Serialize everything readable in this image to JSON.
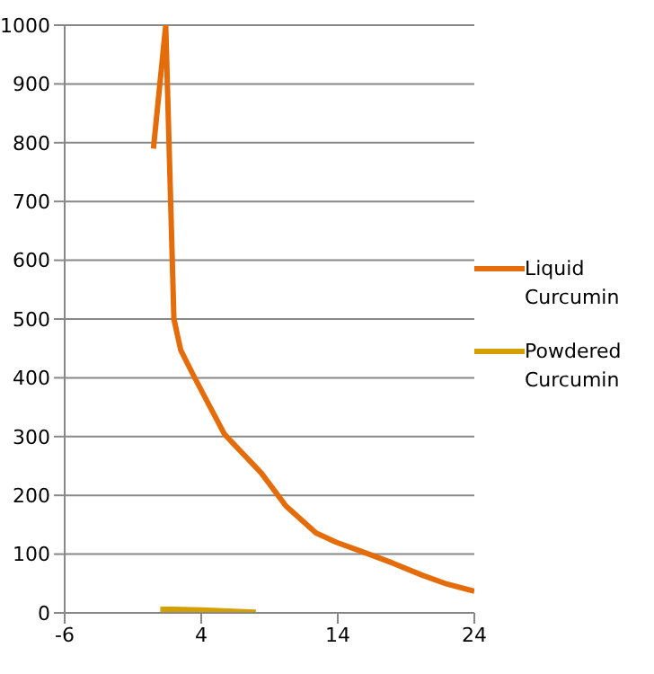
{
  "chart_data": {
    "type": "line",
    "xlim": [
      -6,
      24
    ],
    "xticks": [
      -6,
      4,
      14,
      24
    ],
    "ylim": [
      0,
      1000
    ],
    "yticks": [
      0,
      100,
      200,
      300,
      400,
      500,
      600,
      700,
      800,
      900,
      1000
    ],
    "grid": "y",
    "legend": "right",
    "marker": "none",
    "line_style": "solid",
    "series": [
      {
        "name": "Liquid Curcumin",
        "color": "#e46c0a",
        "x": [
          0.5,
          1.4,
          2,
          2.5,
          3.5,
          5.7,
          8.4,
          10.2,
          12.4,
          13.9,
          15.7,
          18,
          20.2,
          22,
          24
        ],
        "values": [
          790,
          1000,
          500,
          447,
          401,
          304,
          238,
          182,
          136,
          120,
          105,
          85,
          64,
          49,
          37
        ]
      },
      {
        "name": "Powdered Curcumin",
        "color": "#d4a000",
        "x": [
          1,
          2,
          4,
          6,
          8
        ],
        "values": [
          6,
          6,
          5,
          3,
          1
        ]
      }
    ]
  }
}
